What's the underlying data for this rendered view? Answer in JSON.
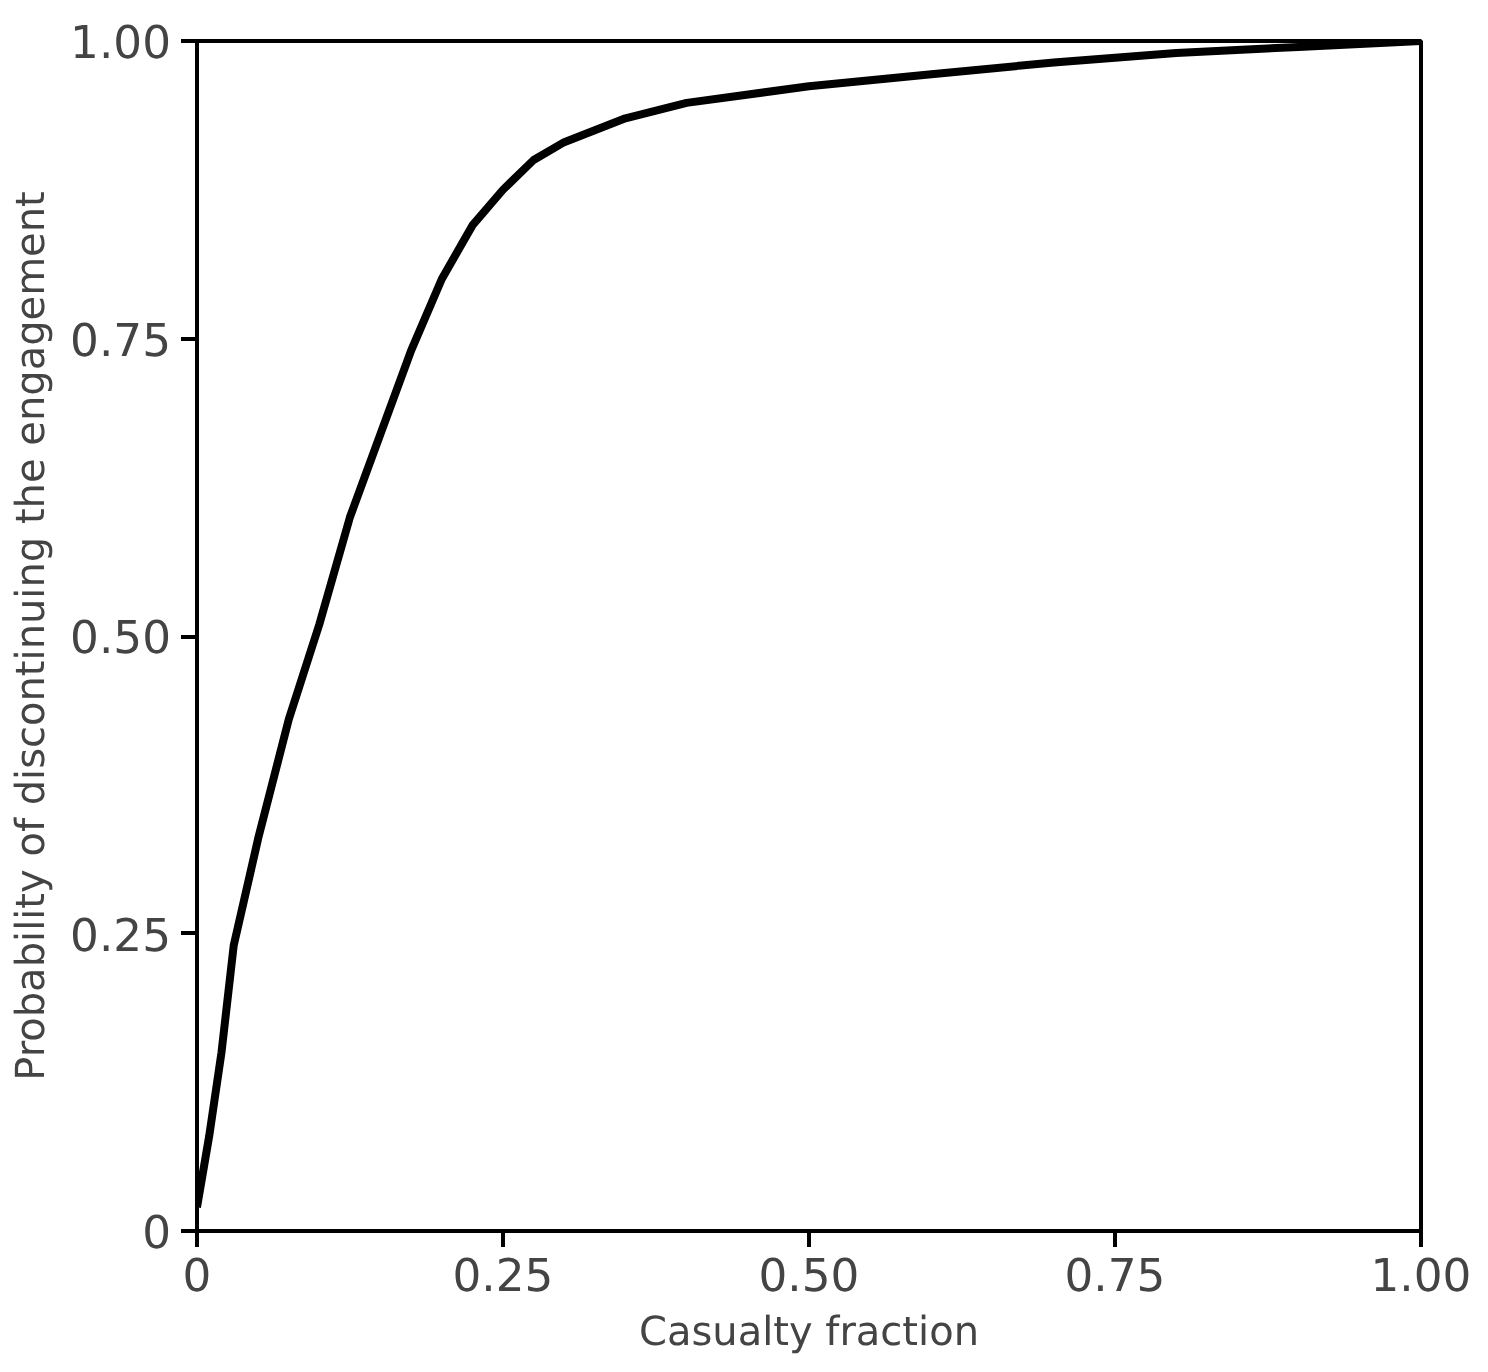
{
  "chart_data": {
    "type": "line",
    "xlabel": "Casualty fraction",
    "ylabel": "Probability of discontinuing the engagement",
    "x": [
      0,
      0.01,
      0.02,
      0.03,
      0.05,
      0.075,
      0.1,
      0.125,
      0.15,
      0.175,
      0.2,
      0.225,
      0.25,
      0.275,
      0.3,
      0.35,
      0.4,
      0.5,
      0.6,
      0.7,
      0.8,
      0.9,
      1.0
    ],
    "series": [
      {
        "color": "#000000",
        "values": [
          0.02,
          0.08,
          0.15,
          0.24,
          0.33,
          0.43,
          0.51,
          0.6,
          0.67,
          0.74,
          0.8,
          0.845,
          0.875,
          0.9,
          0.915,
          0.935,
          0.948,
          0.962,
          0.972,
          0.982,
          0.99,
          0.995,
          1.0
        ]
      }
    ],
    "xlim": [
      0,
      1
    ],
    "ylim": [
      0,
      1
    ],
    "xticks": [
      {
        "value": 0,
        "label": "0"
      },
      {
        "value": 0.25,
        "label": "0.25"
      },
      {
        "value": 0.5,
        "label": "0.50"
      },
      {
        "value": 0.75,
        "label": "0.75"
      },
      {
        "value": 1,
        "label": "1.00"
      }
    ],
    "yticks": [
      {
        "value": 0,
        "label": "0"
      },
      {
        "value": 0.25,
        "label": "0.25"
      },
      {
        "value": 0.5,
        "label": "0.50"
      },
      {
        "value": 0.75,
        "label": "0.75"
      },
      {
        "value": 1,
        "label": "1.00"
      }
    ],
    "line_style": "solid"
  }
}
